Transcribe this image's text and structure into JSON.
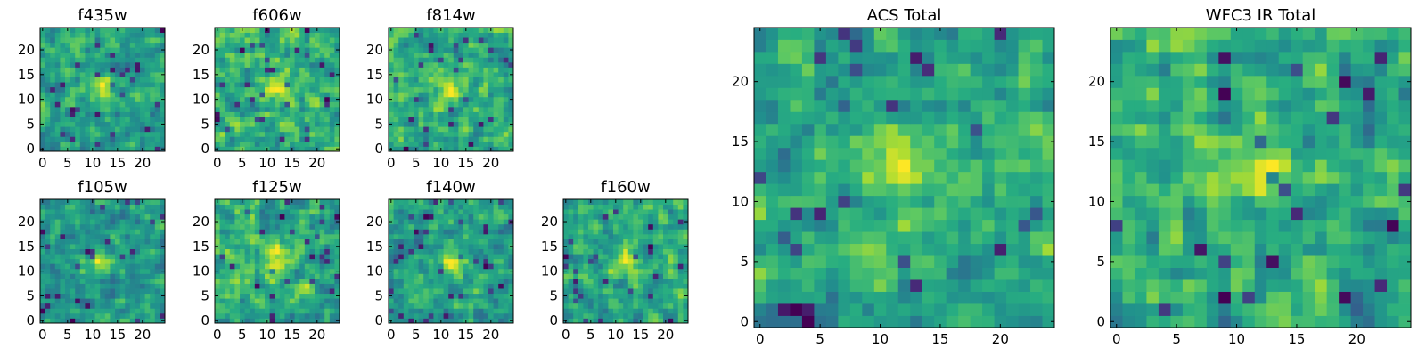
{
  "chart_data": [
    {
      "type": "heatmap",
      "title": "f435w",
      "xticks": [
        "0",
        "5",
        "10",
        "15",
        "20"
      ],
      "yticks": [
        "0",
        "5",
        "10",
        "15",
        "20"
      ],
      "xlim": [
        0,
        24
      ],
      "ylim": [
        0,
        24
      ],
      "grid_size": 25,
      "colormap": "viridis",
      "bright_spot": [
        12,
        12
      ],
      "seed": 11
    },
    {
      "type": "heatmap",
      "title": "f606w",
      "xticks": [
        "0",
        "5",
        "10",
        "15",
        "20"
      ],
      "yticks": [
        "0",
        "5",
        "10",
        "15",
        "20"
      ],
      "xlim": [
        0,
        24
      ],
      "ylim": [
        0,
        24
      ],
      "grid_size": 25,
      "colormap": "viridis",
      "bright_spot": [
        12,
        12
      ],
      "seed": 23
    },
    {
      "type": "heatmap",
      "title": "f814w",
      "xticks": [
        "0",
        "5",
        "10",
        "15",
        "20"
      ],
      "yticks": [
        "0",
        "5",
        "10",
        "15",
        "20"
      ],
      "xlim": [
        0,
        24
      ],
      "ylim": [
        0,
        24
      ],
      "grid_size": 25,
      "colormap": "viridis",
      "bright_spot": [
        12,
        12
      ],
      "seed": 37
    },
    {
      "type": "heatmap",
      "title": "f105w",
      "xticks": [
        "0",
        "5",
        "10",
        "15",
        "20"
      ],
      "yticks": [
        "0",
        "5",
        "10",
        "15",
        "20"
      ],
      "xlim": [
        0,
        24
      ],
      "ylim": [
        0,
        24
      ],
      "grid_size": 25,
      "colormap": "viridis",
      "bright_spot": [
        12,
        12
      ],
      "seed": 41
    },
    {
      "type": "heatmap",
      "title": "f125w",
      "xticks": [
        "0",
        "5",
        "10",
        "15",
        "20"
      ],
      "yticks": [
        "0",
        "5",
        "10",
        "15",
        "20"
      ],
      "xlim": [
        0,
        24
      ],
      "ylim": [
        0,
        24
      ],
      "grid_size": 25,
      "colormap": "viridis",
      "bright_spot": [
        12,
        12
      ],
      "seed": 53
    },
    {
      "type": "heatmap",
      "title": "f140w",
      "xticks": [
        "0",
        "5",
        "10",
        "15",
        "20"
      ],
      "yticks": [
        "0",
        "5",
        "10",
        "15",
        "20"
      ],
      "xlim": [
        0,
        24
      ],
      "ylim": [
        0,
        24
      ],
      "grid_size": 25,
      "colormap": "viridis",
      "bright_spot": [
        12,
        12
      ],
      "seed": 67
    },
    {
      "type": "heatmap",
      "title": "f160w",
      "xticks": [
        "0",
        "5",
        "10",
        "15",
        "20"
      ],
      "yticks": [
        "0",
        "5",
        "10",
        "15",
        "20"
      ],
      "xlim": [
        0,
        24
      ],
      "ylim": [
        0,
        24
      ],
      "grid_size": 25,
      "colormap": "viridis",
      "bright_spot": [
        12,
        12
      ],
      "seed": 79
    },
    {
      "type": "heatmap",
      "title": "ACS Total",
      "xticks": [
        "0",
        "5",
        "10",
        "15",
        "20"
      ],
      "yticks": [
        "0",
        "5",
        "10",
        "15",
        "20"
      ],
      "xlim": [
        0,
        24
      ],
      "ylim": [
        0,
        24
      ],
      "grid_size": 25,
      "colormap": "viridis",
      "bright_spot": [
        12,
        13
      ],
      "seed": 97
    },
    {
      "type": "heatmap",
      "title": "WFC3 IR Total",
      "xticks": [
        "0",
        "5",
        "10",
        "15",
        "20"
      ],
      "yticks": [
        "0",
        "5",
        "10",
        "15",
        "20"
      ],
      "xlim": [
        0,
        24
      ],
      "ylim": [
        0,
        24
      ],
      "grid_size": 25,
      "colormap": "viridis",
      "bright_spot": [
        12,
        13
      ],
      "seed": 131
    }
  ]
}
